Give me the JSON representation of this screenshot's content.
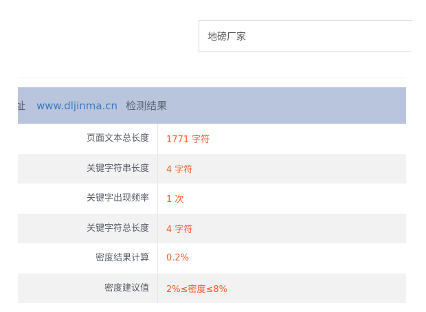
{
  "keyword_input": {
    "value": "地磅厂家"
  },
  "header": {
    "label": "址",
    "url": "www.dljinma.cn",
    "result_label": "检测结果"
  },
  "rows": [
    {
      "label": "页面文本总长度",
      "value": "1771 字符"
    },
    {
      "label": "关键字符串长度",
      "value": "4 字符"
    },
    {
      "label": "关键字出现频率",
      "value": "1 次"
    },
    {
      "label": "关键字符总长度",
      "value": "4 字符"
    },
    {
      "label": "密度结果计算",
      "value": "0.2%"
    },
    {
      "label": "密度建议值",
      "value": "2%≤密度≤8%"
    }
  ],
  "colors": {
    "header_bg": "#b9c5dc",
    "value_text": "#f25a2a",
    "link": "#3a78c0"
  }
}
